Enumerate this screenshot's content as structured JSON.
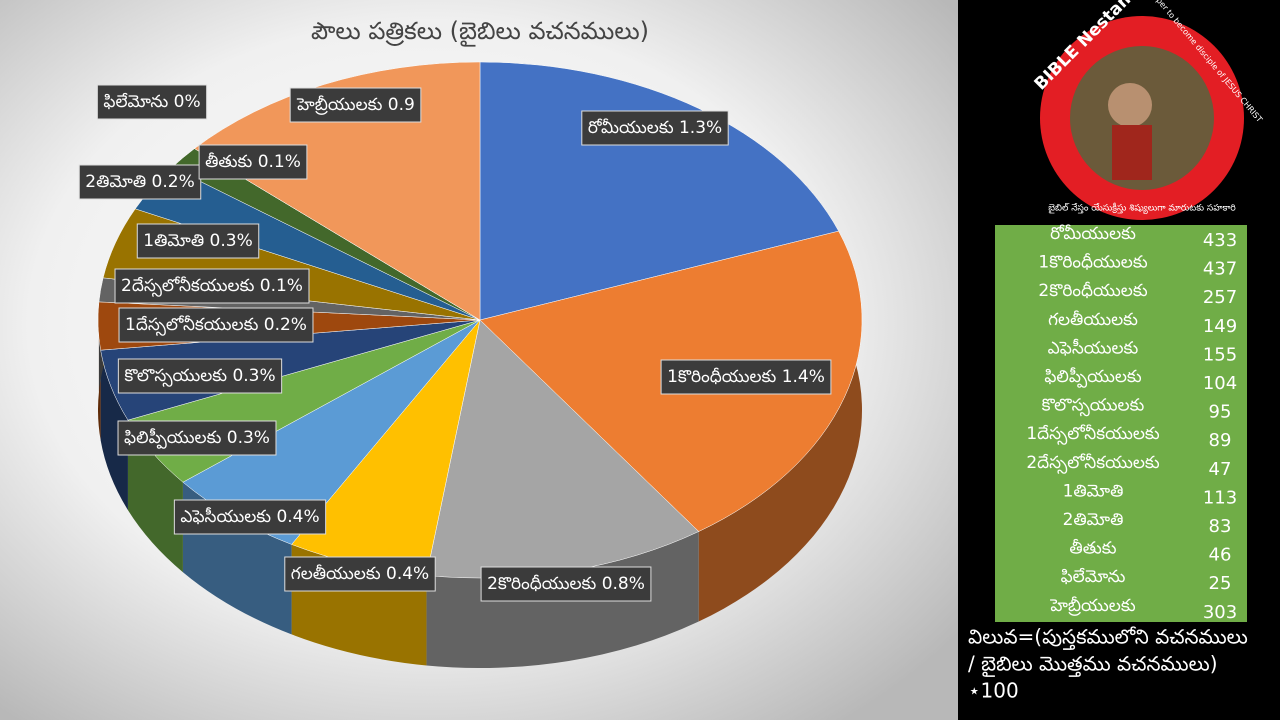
{
  "chart_data": {
    "type": "pie",
    "title": "పౌలు పత్రికలు (బైబిలు వచనములు)",
    "categories": [
      "రోమీయులకు",
      "1కొరింధీయులకు",
      "2కొరింధీయులకు",
      "గలతీయులకు",
      "ఎఫెసీయులకు",
      "ఫిలిప్పీయులకు",
      "కొలొస్సయులకు",
      "1దేస్సలోనీకయులకు",
      "2దేస్సలోనీకయులకు",
      "1తిమోతి",
      "2తిమోతి",
      "తీతుకు",
      "ఫిలేమోను",
      "హెబ్రీయులకు"
    ],
    "values": [
      1.3,
      1.4,
      0.8,
      0.4,
      0.4,
      0.3,
      0.3,
      0.2,
      0.1,
      0.3,
      0.2,
      0.1,
      0,
      0.9
    ],
    "value_labels": [
      "1.3%",
      "1.4%",
      "0.8%",
      "0.4%",
      "0.4%",
      "0.3%",
      "0.3%",
      "0.2%",
      "0.1%",
      "0.3%",
      "0.2%",
      "0.1%",
      "0%",
      "0.9"
    ],
    "colors": [
      "#4472c4",
      "#ed7d31",
      "#a5a5a5",
      "#ffc000",
      "#5b9bd5",
      "#70ad47",
      "#264478",
      "#9e480e",
      "#636363",
      "#997300",
      "#255e91",
      "#43682b",
      "#698ed0",
      "#f1975a"
    ]
  },
  "logo": {
    "title": "BIBLE Nestam",
    "subtitle": "Helper to become disciple of JESUS CHRIST",
    "telugu": "బైబిల్ నేస్తం యేసుక్రీస్తు శిష్యులుగా మారుటకు సహకారి"
  },
  "table": {
    "rows": [
      [
        "రోమీయులకు",
        "433"
      ],
      [
        "1కొరింధీయులకు",
        "437"
      ],
      [
        "2కొరింధీయులకు",
        "257"
      ],
      [
        "గలతీయులకు",
        "149"
      ],
      [
        "ఎఫెసీయులకు",
        "155"
      ],
      [
        "ఫిలిప్పీయులకు",
        "104"
      ],
      [
        "కొలొస్సయులకు",
        "95"
      ],
      [
        "1దేస్సలోనీకయులకు",
        "89"
      ],
      [
        "2దేస్సలోనీకయులకు",
        "47"
      ],
      [
        "1తిమోతి",
        "113"
      ],
      [
        "2తిమోతి",
        "83"
      ],
      [
        "తీతుకు",
        "46"
      ],
      [
        "ఫిలేమోను",
        "25"
      ],
      [
        "హెబ్రీయులకు",
        "303"
      ]
    ]
  },
  "note": [
    "విలువ=(పుస్తకములోని వచనములు",
    "/ బైబిలు మొత్తము వచనములు)",
    "⋆100"
  ]
}
